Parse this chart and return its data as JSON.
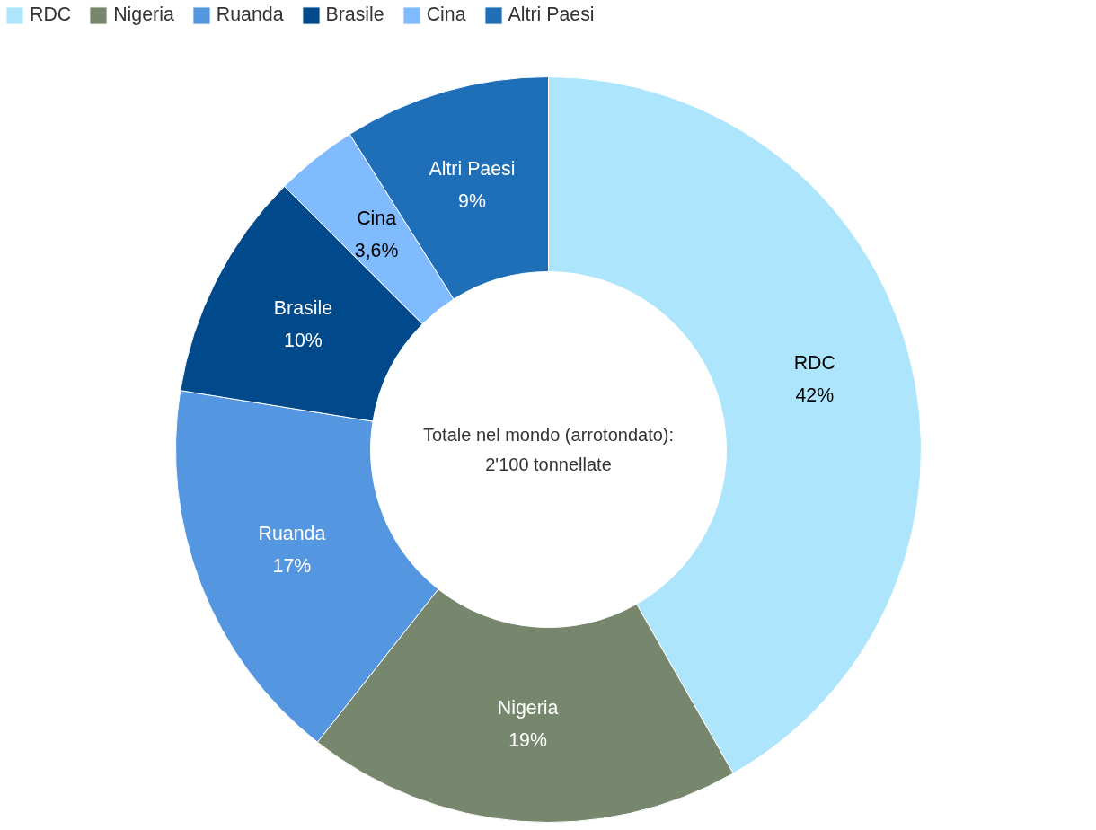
{
  "chart_data": {
    "type": "donut",
    "categories": [
      "RDC",
      "Nigeria",
      "Ruanda",
      "Brasile",
      "Cina",
      "Altri Paesi"
    ],
    "values": [
      42,
      19,
      17,
      10,
      3.6,
      9
    ],
    "value_labels": [
      "42%",
      "19%",
      "17%",
      "10%",
      "3,6%",
      "9%"
    ],
    "colors": [
      "#ade6fc",
      "#76876d",
      "#5596e0",
      "#004a8c",
      "#80bbff",
      "#1f6fb8"
    ],
    "annotations": [
      "Totale nel mondo (arrotondato):\n2'100 tonnellate"
    ],
    "legend": "top left"
  }
}
